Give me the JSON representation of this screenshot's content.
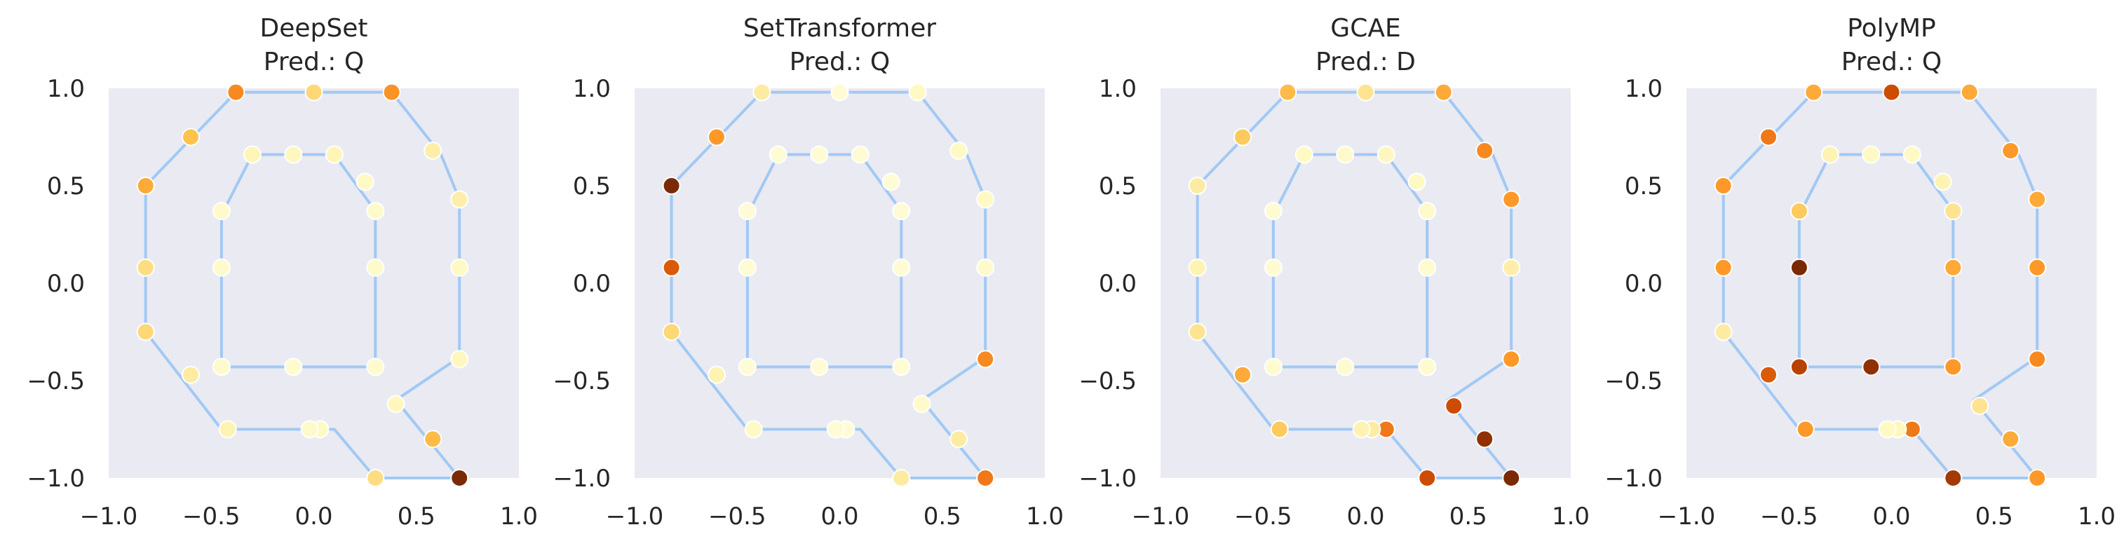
{
  "chart_data": [
    {
      "type": "scatter",
      "title": "DeepSet",
      "subtitle": "Pred.: Q",
      "xlim": [
        -1.0,
        1.0
      ],
      "ylim": [
        -1.0,
        1.0
      ],
      "grid": false,
      "xticks": [
        "−1.0",
        "−0.5",
        "0.0",
        "0.5",
        "1.0"
      ],
      "yticks": [
        "1.0",
        "0.5",
        "0.0",
        "−0.5",
        "−1.0"
      ],
      "points": [
        [
          -0.38,
          0.98,
          0.55
        ],
        [
          0.0,
          0.98,
          0.3
        ],
        [
          0.38,
          0.98,
          0.52
        ],
        [
          0.58,
          0.68,
          0.18
        ],
        [
          0.71,
          0.43,
          0.18
        ],
        [
          0.71,
          0.08,
          0.1
        ],
        [
          0.71,
          -0.39,
          0.12
        ],
        [
          0.58,
          -0.8,
          0.4
        ],
        [
          0.71,
          -1.0,
          0.95
        ],
        [
          0.3,
          -1.0,
          0.28
        ],
        [
          0.03,
          -0.75,
          0.1
        ],
        [
          -0.02,
          -0.75,
          0.08
        ],
        [
          -0.42,
          -0.75,
          0.15
        ],
        [
          -0.6,
          -0.47,
          0.2
        ],
        [
          -0.82,
          -0.25,
          0.3
        ],
        [
          -0.82,
          0.08,
          0.28
        ],
        [
          -0.82,
          0.5,
          0.45
        ],
        [
          -0.6,
          0.75,
          0.38
        ],
        [
          -0.3,
          0.66,
          0.14
        ],
        [
          -0.1,
          0.66,
          0.12
        ],
        [
          0.1,
          0.66,
          0.14
        ],
        [
          0.25,
          0.52,
          0.1
        ],
        [
          0.3,
          0.37,
          0.08
        ],
        [
          0.3,
          0.08,
          0.08
        ],
        [
          0.3,
          -0.43,
          0.07
        ],
        [
          -0.1,
          -0.43,
          0.07
        ],
        [
          -0.45,
          -0.43,
          0.08
        ],
        [
          -0.45,
          0.08,
          0.08
        ],
        [
          -0.45,
          0.37,
          0.08
        ],
        [
          0.4,
          -0.62,
          0.12
        ]
      ],
      "outline": [
        [
          -0.38,
          0.98
        ],
        [
          0.38,
          0.98
        ],
        [
          0.62,
          0.66
        ],
        [
          0.71,
          0.43
        ],
        [
          0.71,
          -0.38
        ],
        [
          0.4,
          -0.6
        ],
        [
          0.71,
          -1.0
        ],
        [
          0.3,
          -1.0
        ],
        [
          0.1,
          -0.75
        ],
        [
          -0.45,
          -0.75
        ],
        [
          -0.82,
          -0.25
        ],
        [
          -0.82,
          0.5
        ],
        [
          -0.38,
          0.98
        ]
      ],
      "inner": [
        [
          -0.45,
          0.35
        ],
        [
          -0.3,
          0.66
        ],
        [
          0.1,
          0.66
        ],
        [
          0.3,
          0.37
        ],
        [
          0.3,
          -0.43
        ],
        [
          -0.45,
          -0.43
        ],
        [
          -0.45,
          0.35
        ]
      ]
    },
    {
      "type": "scatter",
      "title": "SetTransformer",
      "subtitle": "Pred.: Q",
      "xlim": [
        -1.0,
        1.0
      ],
      "ylim": [
        -1.0,
        1.0
      ],
      "grid": false,
      "xticks": [
        "−1.0",
        "−0.5",
        "0.0",
        "0.5",
        "1.0"
      ],
      "yticks": [
        "1.0",
        "0.5",
        "0.0",
        "−0.5",
        "−1.0"
      ],
      "points": [
        [
          -0.38,
          0.98,
          0.2
        ],
        [
          0.0,
          0.98,
          0.05
        ],
        [
          0.38,
          0.98,
          0.1
        ],
        [
          0.58,
          0.68,
          0.1
        ],
        [
          0.71,
          0.43,
          0.1
        ],
        [
          0.71,
          0.08,
          0.08
        ],
        [
          0.71,
          -0.39,
          0.55
        ],
        [
          0.58,
          -0.8,
          0.2
        ],
        [
          0.71,
          -1.0,
          0.6
        ],
        [
          0.3,
          -1.0,
          0.2
        ],
        [
          0.03,
          -0.75,
          0.05
        ],
        [
          -0.02,
          -0.75,
          0.05
        ],
        [
          -0.42,
          -0.75,
          0.1
        ],
        [
          -0.6,
          -0.47,
          0.15
        ],
        [
          -0.82,
          -0.25,
          0.3
        ],
        [
          -0.82,
          0.08,
          0.7
        ],
        [
          -0.82,
          0.5,
          0.95
        ],
        [
          -0.6,
          0.75,
          0.5
        ],
        [
          -0.3,
          0.66,
          0.05
        ],
        [
          -0.1,
          0.66,
          0.05
        ],
        [
          0.1,
          0.66,
          0.05
        ],
        [
          0.25,
          0.52,
          0.05
        ],
        [
          0.3,
          0.37,
          0.05
        ],
        [
          0.3,
          0.08,
          0.05
        ],
        [
          0.3,
          -0.43,
          0.05
        ],
        [
          -0.1,
          -0.43,
          0.05
        ],
        [
          -0.45,
          -0.43,
          0.05
        ],
        [
          -0.45,
          0.08,
          0.05
        ],
        [
          -0.45,
          0.37,
          0.05
        ],
        [
          0.4,
          -0.62,
          0.08
        ]
      ],
      "outline": [
        [
          -0.38,
          0.98
        ],
        [
          0.38,
          0.98
        ],
        [
          0.62,
          0.66
        ],
        [
          0.71,
          0.43
        ],
        [
          0.71,
          -0.38
        ],
        [
          0.4,
          -0.6
        ],
        [
          0.71,
          -1.0
        ],
        [
          0.3,
          -1.0
        ],
        [
          0.1,
          -0.75
        ],
        [
          -0.45,
          -0.75
        ],
        [
          -0.82,
          -0.25
        ],
        [
          -0.82,
          0.5
        ],
        [
          -0.38,
          0.98
        ]
      ],
      "inner": [
        [
          -0.45,
          0.35
        ],
        [
          -0.3,
          0.66
        ],
        [
          0.1,
          0.66
        ],
        [
          0.3,
          0.37
        ],
        [
          0.3,
          -0.43
        ],
        [
          -0.45,
          -0.43
        ],
        [
          -0.45,
          0.35
        ]
      ]
    },
    {
      "type": "scatter",
      "title": "GCAE",
      "subtitle": "Pred.: D",
      "xlim": [
        -1.0,
        1.0
      ],
      "ylim": [
        -1.0,
        1.0
      ],
      "grid": false,
      "xticks": [
        "−1.0",
        "−0.5",
        "0.0",
        "0.5",
        "1.0"
      ],
      "yticks": [
        "1.0",
        "0.5",
        "0.0",
        "−0.5",
        "−1.0"
      ],
      "points": [
        [
          -0.38,
          0.98,
          0.4
        ],
        [
          0.0,
          0.98,
          0.25
        ],
        [
          0.38,
          0.98,
          0.45
        ],
        [
          0.58,
          0.68,
          0.55
        ],
        [
          0.71,
          0.43,
          0.5
        ],
        [
          0.71,
          0.08,
          0.18
        ],
        [
          0.71,
          -0.39,
          0.5
        ],
        [
          0.58,
          -0.8,
          0.9
        ],
        [
          0.71,
          -1.0,
          0.95
        ],
        [
          0.3,
          -1.0,
          0.75
        ],
        [
          0.1,
          -0.75,
          0.6
        ],
        [
          0.03,
          -0.75,
          0.2
        ],
        [
          -0.02,
          -0.75,
          0.15
        ],
        [
          -0.42,
          -0.75,
          0.35
        ],
        [
          -0.6,
          -0.47,
          0.45
        ],
        [
          -0.82,
          -0.25,
          0.25
        ],
        [
          -0.82,
          0.08,
          0.15
        ],
        [
          -0.82,
          0.5,
          0.2
        ],
        [
          -0.6,
          0.75,
          0.35
        ],
        [
          -0.3,
          0.66,
          0.1
        ],
        [
          -0.1,
          0.66,
          0.08
        ],
        [
          0.1,
          0.66,
          0.12
        ],
        [
          0.25,
          0.52,
          0.1
        ],
        [
          0.3,
          0.37,
          0.08
        ],
        [
          0.3,
          0.08,
          0.06
        ],
        [
          0.3,
          -0.43,
          0.06
        ],
        [
          -0.1,
          -0.43,
          0.06
        ],
        [
          -0.45,
          -0.43,
          0.06
        ],
        [
          -0.45,
          0.08,
          0.06
        ],
        [
          -0.45,
          0.37,
          0.06
        ],
        [
          0.43,
          -0.63,
          0.75
        ]
      ],
      "outline": [
        [
          -0.38,
          0.98
        ],
        [
          0.38,
          0.98
        ],
        [
          0.62,
          0.66
        ],
        [
          0.71,
          0.43
        ],
        [
          0.71,
          -0.38
        ],
        [
          0.4,
          -0.6
        ],
        [
          0.71,
          -1.0
        ],
        [
          0.3,
          -1.0
        ],
        [
          0.1,
          -0.75
        ],
        [
          -0.45,
          -0.75
        ],
        [
          -0.82,
          -0.25
        ],
        [
          -0.82,
          0.5
        ],
        [
          -0.38,
          0.98
        ]
      ],
      "inner": [
        [
          -0.45,
          0.35
        ],
        [
          -0.3,
          0.66
        ],
        [
          0.1,
          0.66
        ],
        [
          0.3,
          0.37
        ],
        [
          0.3,
          -0.43
        ],
        [
          -0.45,
          -0.43
        ],
        [
          -0.45,
          0.35
        ]
      ]
    },
    {
      "type": "scatter",
      "title": "PolyMP",
      "subtitle": "Pred.: Q",
      "xlim": [
        -1.0,
        1.0
      ],
      "ylim": [
        -1.0,
        1.0
      ],
      "grid": false,
      "xticks": [
        "−1.0",
        "−0.5",
        "0.0",
        "0.5",
        "1.0"
      ],
      "yticks": [
        "1.0",
        "0.5",
        "0.0",
        "−0.5",
        "−1.0"
      ],
      "points": [
        [
          -0.38,
          0.98,
          0.45
        ],
        [
          0.0,
          0.98,
          0.75
        ],
        [
          0.38,
          0.98,
          0.45
        ],
        [
          0.58,
          0.68,
          0.5
        ],
        [
          0.71,
          0.43,
          0.45
        ],
        [
          0.71,
          0.08,
          0.5
        ],
        [
          0.71,
          -0.39,
          0.55
        ],
        [
          0.58,
          -0.8,
          0.45
        ],
        [
          0.71,
          -1.0,
          0.5
        ],
        [
          0.3,
          -1.0,
          0.85
        ],
        [
          0.1,
          -0.75,
          0.6
        ],
        [
          0.03,
          -0.75,
          0.12
        ],
        [
          -0.02,
          -0.75,
          0.1
        ],
        [
          -0.42,
          -0.75,
          0.5
        ],
        [
          -0.6,
          -0.47,
          0.7
        ],
        [
          -0.82,
          -0.25,
          0.2
        ],
        [
          -0.82,
          0.08,
          0.5
        ],
        [
          -0.82,
          0.5,
          0.5
        ],
        [
          -0.6,
          0.75,
          0.6
        ],
        [
          -0.3,
          0.66,
          0.15
        ],
        [
          -0.1,
          0.66,
          0.1
        ],
        [
          0.1,
          0.66,
          0.1
        ],
        [
          0.25,
          0.52,
          0.15
        ],
        [
          0.3,
          0.37,
          0.25
        ],
        [
          0.3,
          0.08,
          0.45
        ],
        [
          0.3,
          -0.43,
          0.5
        ],
        [
          -0.1,
          -0.43,
          0.9
        ],
        [
          -0.45,
          -0.43,
          0.8
        ],
        [
          -0.45,
          0.08,
          0.95
        ],
        [
          -0.45,
          0.37,
          0.35
        ],
        [
          0.43,
          -0.63,
          0.25
        ]
      ],
      "outline": [
        [
          -0.38,
          0.98
        ],
        [
          0.38,
          0.98
        ],
        [
          0.62,
          0.66
        ],
        [
          0.71,
          0.43
        ],
        [
          0.71,
          -0.38
        ],
        [
          0.4,
          -0.6
        ],
        [
          0.71,
          -1.0
        ],
        [
          0.3,
          -1.0
        ],
        [
          0.1,
          -0.75
        ],
        [
          -0.45,
          -0.75
        ],
        [
          -0.82,
          -0.25
        ],
        [
          -0.82,
          0.5
        ],
        [
          -0.38,
          0.98
        ]
      ],
      "inner": [
        [
          -0.45,
          0.35
        ],
        [
          -0.3,
          0.66
        ],
        [
          0.1,
          0.66
        ],
        [
          0.3,
          0.37
        ],
        [
          0.3,
          -0.43
        ],
        [
          -0.45,
          -0.43
        ],
        [
          -0.45,
          0.35
        ]
      ]
    }
  ],
  "colors": {
    "axes_background": "#EAEAF2",
    "line": "#A1C9F4",
    "colormap": [
      "#FFFFE5",
      "#FFF7BC",
      "#FEE391",
      "#FEC44F",
      "#FE9929",
      "#EC7014",
      "#CC4C02",
      "#993404",
      "#662506"
    ]
  }
}
